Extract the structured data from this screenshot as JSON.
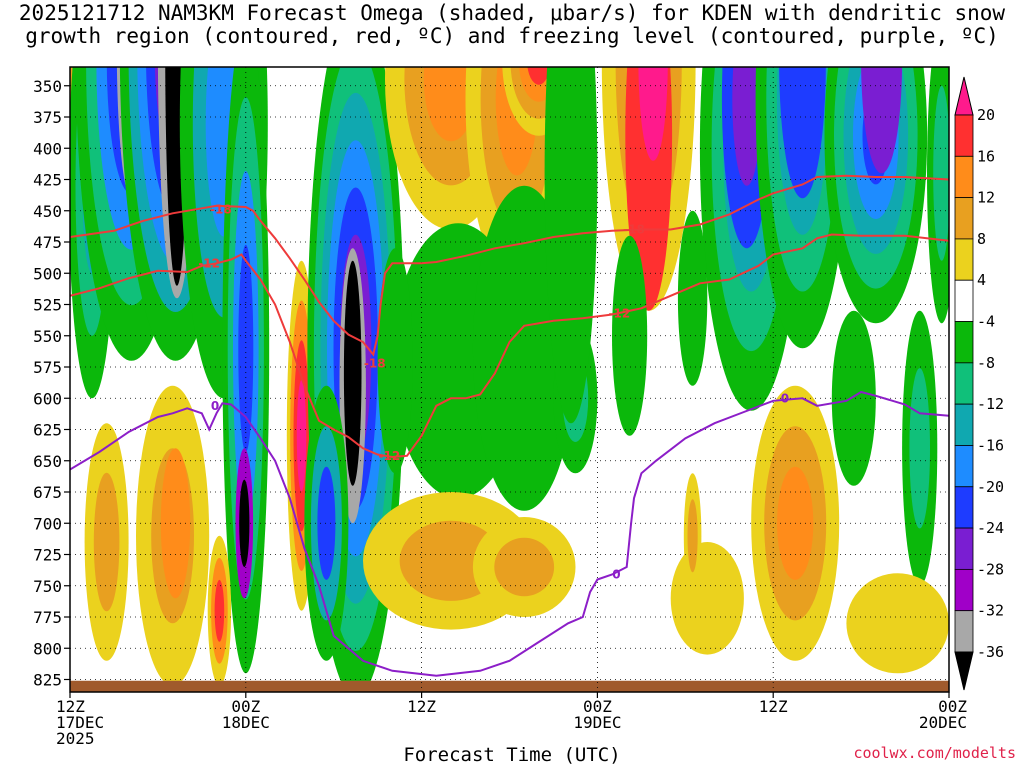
{
  "chart_data": {
    "type": "heatmap",
    "title_line1": "2025121712 NAM3KM Forecast Omega (shaded, μbar/s) for KDEN with dendritic snow",
    "title_line2": "growth region (contoured, red, ºC) and freezing level (contoured, purple, ºC)",
    "xlabel": "Forecast Time (UTC)",
    "credit": "coolwx.com/modelts",
    "x_range_hours": [
      0,
      60
    ],
    "y_range_mb": [
      335,
      835
    ],
    "y_ticks": [
      "350",
      "375",
      "400",
      "425",
      "450",
      "475",
      "500",
      "525",
      "550",
      "575",
      "600",
      "625",
      "650",
      "675",
      "700",
      "725",
      "750",
      "775",
      "800",
      "825"
    ],
    "x_ticks": [
      {
        "hour": 0,
        "lines": [
          "12Z",
          "17DEC",
          "2025"
        ]
      },
      {
        "hour": 12,
        "lines": [
          "00Z",
          "18DEC"
        ]
      },
      {
        "hour": 24,
        "lines": [
          "12Z"
        ]
      },
      {
        "hour": 36,
        "lines": [
          "00Z",
          "19DEC"
        ]
      },
      {
        "hour": 48,
        "lines": [
          "12Z"
        ]
      },
      {
        "hour": 60,
        "lines": [
          "00Z",
          "20DEC"
        ]
      }
    ],
    "colorbar": {
      "labels": [
        "20",
        "16",
        "12",
        "8",
        "4",
        "-4",
        "-8",
        "-12",
        "-16",
        "-20",
        "-24",
        "-28",
        "-32",
        "-36"
      ],
      "top_color": "#ff1a8c",
      "bottom_color": "#000000",
      "colors_top_to_bottom": [
        "#ff3030",
        "#ff8c1a",
        "#e8a020",
        "#ebd21e",
        "#ffffff",
        "#0bb80b",
        "#10c07a",
        "#10a8b0",
        "#1e8cff",
        "#1e3cff",
        "#7a1ed2",
        "#a000c8",
        "#a8a8a8"
      ]
    },
    "surface_color": "#a05a2c",
    "contours": {
      "t_minus18": {
        "label": "-18",
        "color": "#ee3b3b",
        "points": [
          [
            0,
            471
          ],
          [
            3,
            466
          ],
          [
            5,
            458
          ],
          [
            7,
            452
          ],
          [
            9,
            448
          ],
          [
            10,
            446
          ],
          [
            12,
            447
          ],
          [
            12.5,
            450
          ],
          [
            13,
            458
          ],
          [
            14,
            472
          ],
          [
            15,
            488
          ],
          [
            16,
            505
          ],
          [
            17,
            523
          ],
          [
            18,
            538
          ],
          [
            19,
            549
          ],
          [
            20,
            555
          ],
          [
            20.7,
            565
          ],
          [
            21,
            550
          ],
          [
            21.2,
            525
          ],
          [
            21.5,
            500
          ],
          [
            22,
            492
          ],
          [
            24,
            492
          ],
          [
            25,
            491
          ],
          [
            27,
            486
          ],
          [
            29,
            480
          ],
          [
            31,
            476
          ],
          [
            33,
            471
          ],
          [
            35,
            468
          ],
          [
            37,
            466
          ],
          [
            39,
            465
          ],
          [
            41,
            465
          ],
          [
            43,
            461
          ],
          [
            45,
            453
          ],
          [
            47,
            441
          ],
          [
            48,
            436
          ],
          [
            50,
            429
          ],
          [
            51,
            423
          ],
          [
            53,
            422
          ],
          [
            55,
            423
          ],
          [
            57,
            423
          ],
          [
            60,
            425
          ]
        ]
      },
      "t_minus12": {
        "label": "-12",
        "color": "#ee3b3b",
        "points": [
          [
            0,
            518
          ],
          [
            2,
            512
          ],
          [
            4,
            504
          ],
          [
            6,
            498
          ],
          [
            8,
            499
          ],
          [
            9,
            494
          ],
          [
            10,
            492
          ],
          [
            11,
            489
          ],
          [
            11.7,
            485
          ],
          [
            12,
            490
          ],
          [
            13,
            505
          ],
          [
            14,
            525
          ],
          [
            15,
            555
          ],
          [
            16,
            590
          ],
          [
            17,
            618
          ],
          [
            18,
            625
          ],
          [
            19,
            631
          ],
          [
            20,
            640
          ],
          [
            21,
            645
          ],
          [
            22,
            647
          ],
          [
            23,
            646
          ],
          [
            24,
            630
          ],
          [
            25,
            606
          ],
          [
            26,
            600
          ],
          [
            27,
            600
          ],
          [
            28,
            597
          ],
          [
            29,
            580
          ],
          [
            30,
            555
          ],
          [
            31,
            542
          ],
          [
            33,
            538
          ],
          [
            35,
            536
          ],
          [
            37,
            533
          ],
          [
            39,
            528
          ],
          [
            41,
            518
          ],
          [
            43,
            508
          ],
          [
            45,
            505
          ],
          [
            47,
            494
          ],
          [
            48,
            485
          ],
          [
            50,
            480
          ],
          [
            51,
            472
          ],
          [
            52,
            469
          ],
          [
            54,
            470
          ],
          [
            57,
            470
          ],
          [
            60,
            474
          ]
        ]
      },
      "freezing": {
        "label": "0",
        "color": "#8c1ec8",
        "points": [
          [
            0,
            657
          ],
          [
            2,
            643
          ],
          [
            4,
            627
          ],
          [
            6,
            615
          ],
          [
            7,
            612
          ],
          [
            8,
            608
          ],
          [
            9,
            612
          ],
          [
            9.5,
            625
          ],
          [
            10,
            612
          ],
          [
            10.4,
            604
          ],
          [
            11,
            605
          ],
          [
            12,
            615
          ],
          [
            13,
            632
          ],
          [
            14,
            650
          ],
          [
            15,
            680
          ],
          [
            16,
            720
          ],
          [
            17,
            750
          ],
          [
            18,
            790
          ],
          [
            19,
            800
          ],
          [
            20,
            810
          ],
          [
            21,
            814
          ],
          [
            22,
            818
          ],
          [
            25,
            822
          ],
          [
            28,
            818
          ],
          [
            30,
            810
          ],
          [
            32,
            795
          ],
          [
            34,
            780
          ],
          [
            35,
            775
          ],
          [
            35.5,
            755
          ],
          [
            36,
            745
          ],
          [
            37,
            741
          ],
          [
            38,
            735
          ],
          [
            38.3,
            700
          ],
          [
            38.5,
            680
          ],
          [
            39,
            660
          ],
          [
            40,
            650
          ],
          [
            42,
            632
          ],
          [
            44,
            620
          ],
          [
            46,
            611
          ],
          [
            48,
            602
          ],
          [
            50,
            600
          ],
          [
            51,
            606
          ],
          [
            53,
            602
          ],
          [
            54,
            595
          ],
          [
            55,
            598
          ],
          [
            57,
            605
          ],
          [
            58,
            612
          ],
          [
            60,
            614
          ]
        ]
      }
    }
  }
}
